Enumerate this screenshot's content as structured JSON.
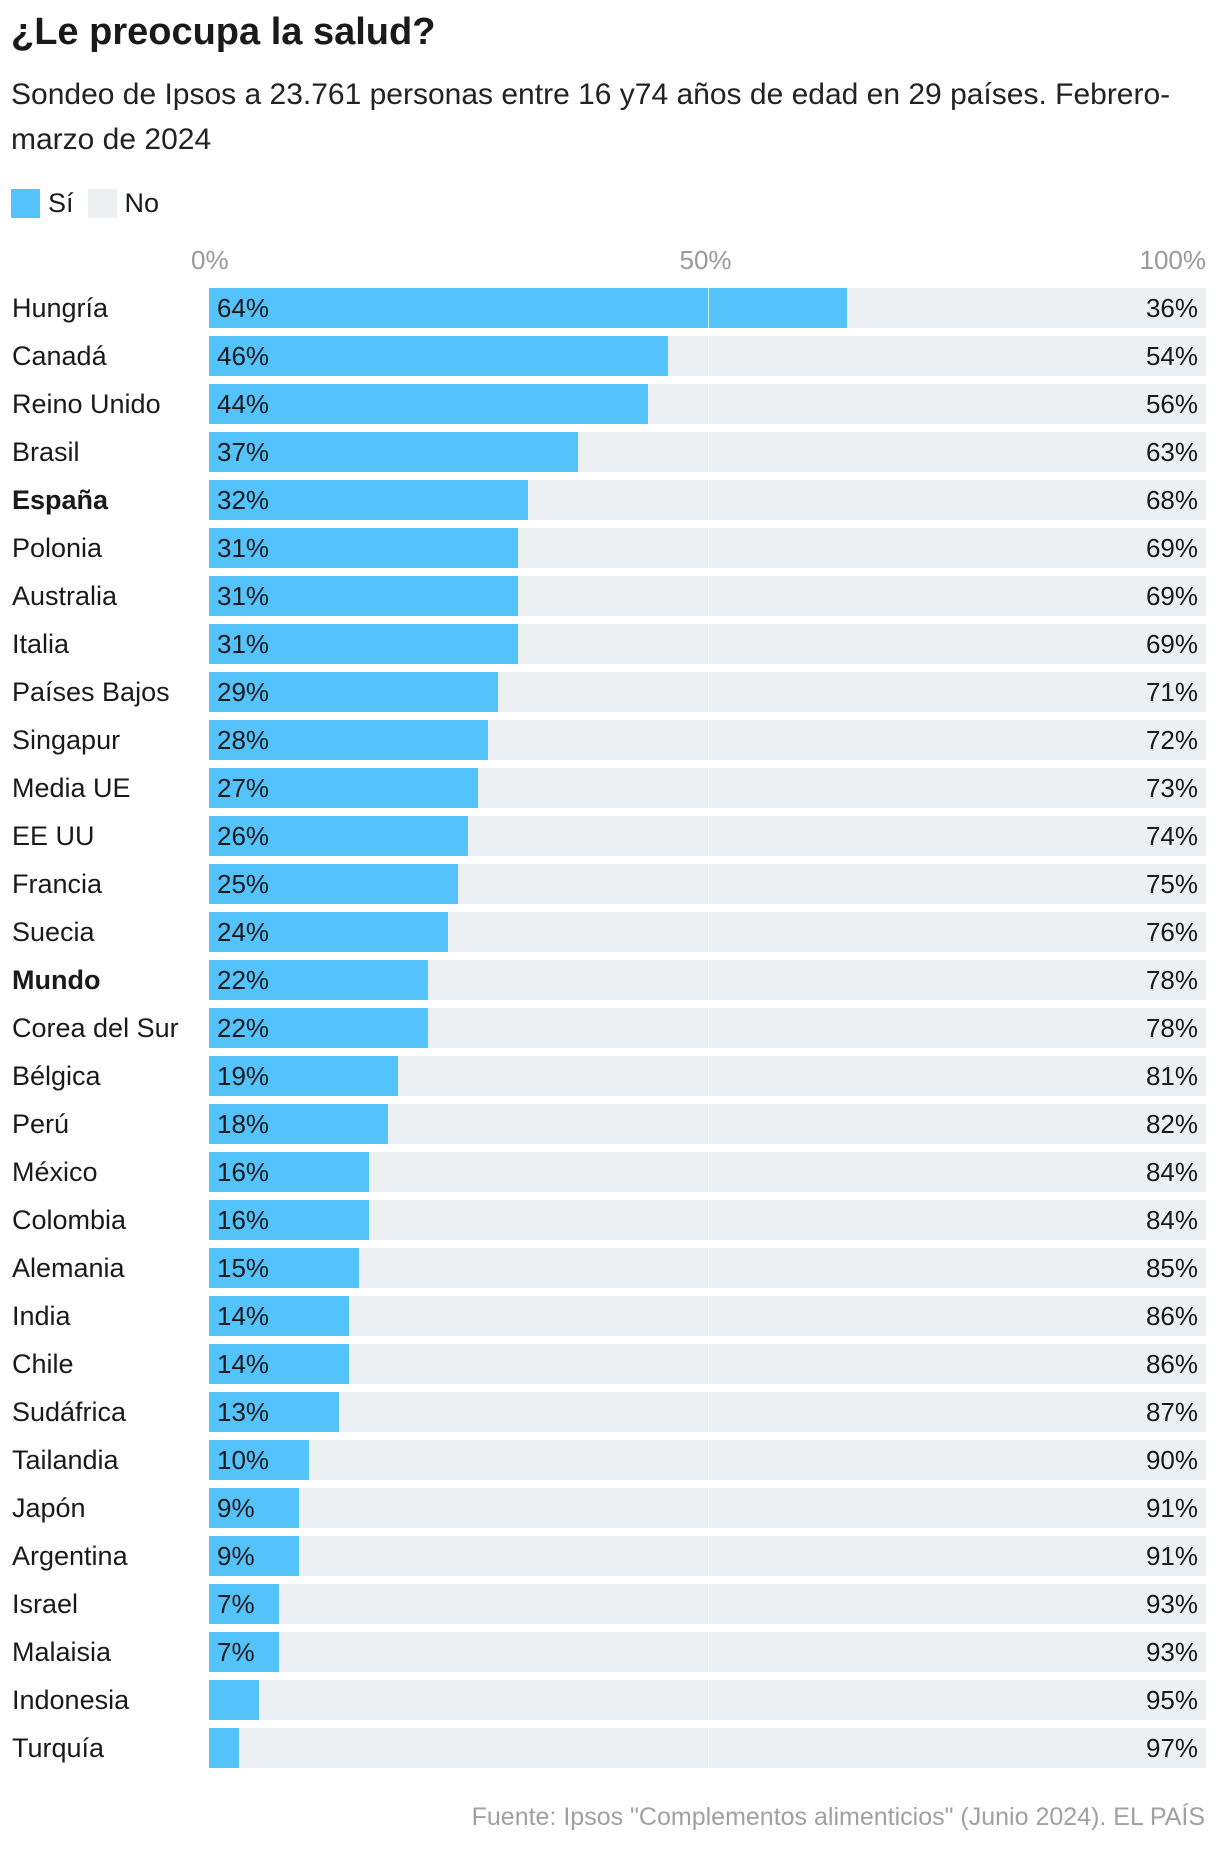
{
  "header": {
    "title": "¿Le preocupa la salud?",
    "subtitle": "Sondeo de Ipsos a 23.761 personas entre 16 y74 años de edad en 29 países. Febrero-marzo de 2024"
  },
  "legend": {
    "si_label": "Sí",
    "no_label": "No"
  },
  "colors": {
    "si": "#55c3fb",
    "no": "#ecf0f3"
  },
  "chart_data": {
    "type": "bar",
    "orientation": "horizontal",
    "stacked": true,
    "xlim": [
      0,
      100
    ],
    "x_ticks": [
      "0%",
      "50%",
      "100%"
    ],
    "categories": [
      "Hungría",
      "Canadá",
      "Reino Unido",
      "Brasil",
      "España",
      "Polonia",
      "Australia",
      "Italia",
      "Países Bajos",
      "Singapur",
      "Media UE",
      "EE UU",
      "Francia",
      "Suecia",
      "Mundo",
      "Corea del Sur",
      "Bélgica",
      "Perú",
      "México",
      "Colombia",
      "Alemania",
      "India",
      "Chile",
      "Sudáfrica",
      "Tailandia",
      "Japón",
      "Argentina",
      "Israel",
      "Malaisia",
      "Indonesia",
      "Turquía"
    ],
    "bold_categories": [
      "España",
      "Mundo"
    ],
    "series": [
      {
        "name": "Sí",
        "values": [
          64,
          46,
          44,
          37,
          32,
          31,
          31,
          31,
          29,
          28,
          27,
          26,
          25,
          24,
          22,
          22,
          19,
          18,
          16,
          16,
          15,
          14,
          14,
          13,
          10,
          9,
          9,
          7,
          7,
          5,
          3
        ],
        "labels": [
          "64%",
          "46%",
          "44%",
          "37%",
          "32%",
          "31%",
          "31%",
          "31%",
          "29%",
          "28%",
          "27%",
          "26%",
          "25%",
          "24%",
          "22%",
          "22%",
          "19%",
          "18%",
          "16%",
          "16%",
          "15%",
          "14%",
          "14%",
          "13%",
          "10%",
          "9%",
          "9%",
          "7%",
          "7%",
          "",
          ""
        ]
      },
      {
        "name": "No",
        "values": [
          36,
          54,
          56,
          63,
          68,
          69,
          69,
          69,
          71,
          72,
          73,
          74,
          75,
          76,
          78,
          78,
          81,
          82,
          84,
          84,
          85,
          86,
          86,
          87,
          90,
          91,
          91,
          93,
          93,
          95,
          97
        ],
        "labels": [
          "36%",
          "54%",
          "56%",
          "63%",
          "68%",
          "69%",
          "69%",
          "69%",
          "71%",
          "72%",
          "73%",
          "74%",
          "75%",
          "76%",
          "78%",
          "78%",
          "81%",
          "82%",
          "84%",
          "84%",
          "85%",
          "86%",
          "86%",
          "87%",
          "90%",
          "91%",
          "91%",
          "93%",
          "93%",
          "95%",
          "97%"
        ]
      }
    ]
  },
  "footer": {
    "source": "Fuente: Ipsos \"Complementos alimenticios\" (Junio 2024). EL PAÍS"
  }
}
